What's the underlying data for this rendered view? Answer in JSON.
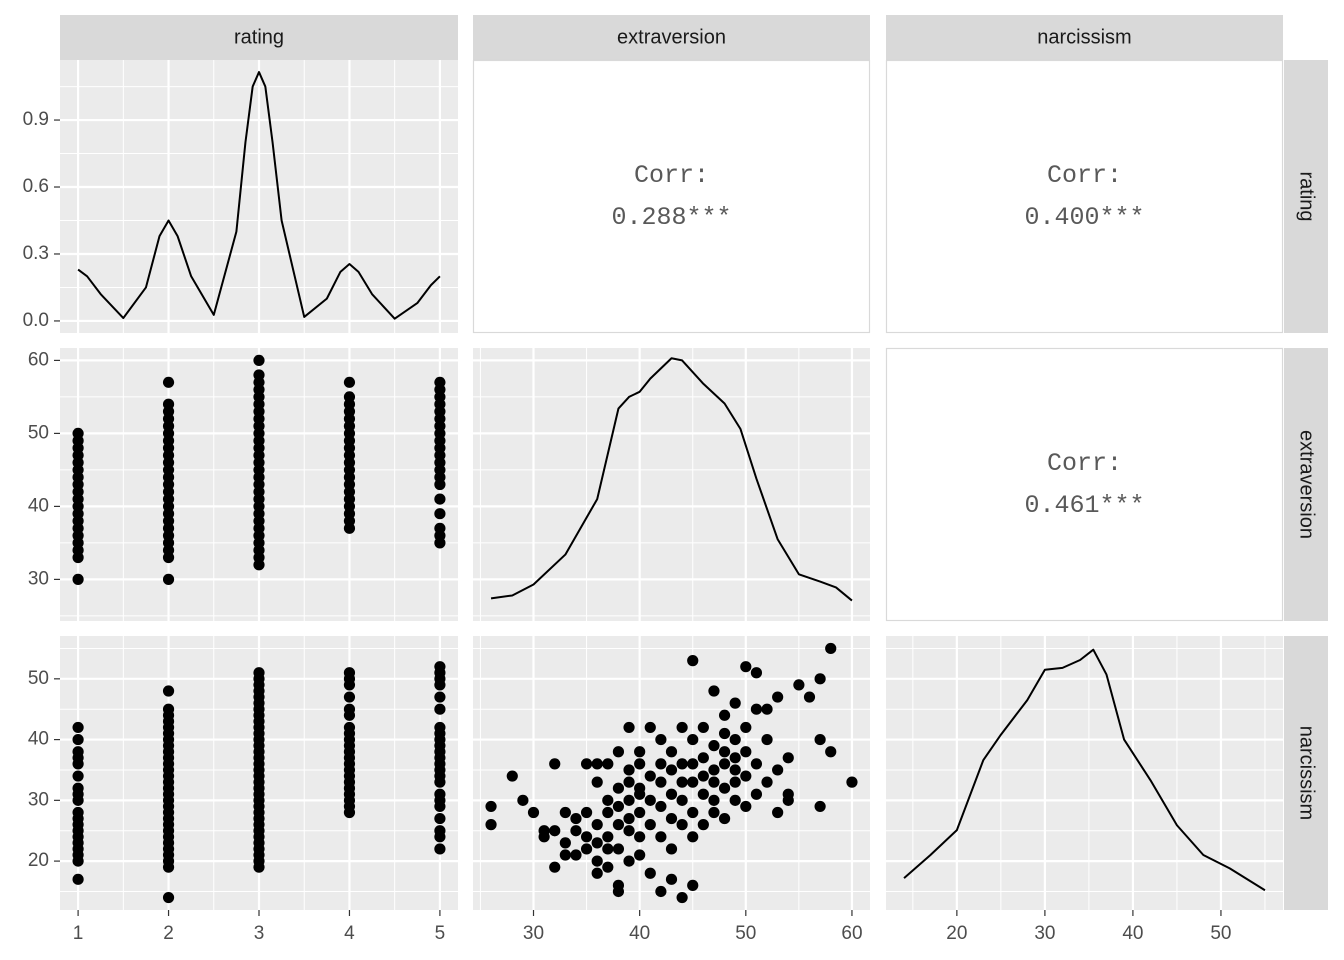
{
  "columns": [
    {
      "label": "rating",
      "xlim": [
        0.8,
        5.2
      ],
      "xticks": [
        1,
        2,
        3,
        4,
        5
      ]
    },
    {
      "label": "extraversion",
      "xlim": [
        24.3,
        61.7
      ],
      "xticks": [
        30,
        40,
        50,
        60
      ]
    },
    {
      "label": "narcissism",
      "xlim": [
        11.95,
        57.05
      ],
      "xticks": [
        20,
        30,
        40,
        50
      ]
    }
  ],
  "rows": [
    {
      "label": "rating",
      "ylim": [
        -0.054,
        1.169
      ],
      "yticks": [
        {
          "value": 0,
          "label": "0.0"
        },
        0.3,
        0.6,
        0.9
      ]
    },
    {
      "label": "extraversion",
      "ylim": [
        24.3,
        61.7
      ],
      "yticks": [
        30,
        40,
        50,
        60
      ]
    },
    {
      "label": "narcissism",
      "ylim": [
        11.95,
        57.05
      ],
      "yticks": [
        20,
        30,
        40,
        50
      ]
    }
  ],
  "chart_data": [
    {
      "type": "line",
      "color": "#000000",
      "x": [
        1,
        1.1,
        1.25,
        1.5,
        1.75,
        1.9,
        2,
        2.1,
        2.25,
        2.5,
        2.75,
        2.85,
        2.93,
        3,
        3.07,
        3.15,
        3.25,
        3.5,
        3.75,
        3.9,
        4,
        4.1,
        4.25,
        4.5,
        4.75,
        4.9,
        5
      ],
      "y": [
        0.23,
        0.2,
        0.12,
        0.013,
        0.15,
        0.38,
        0.45,
        0.38,
        0.2,
        0.027,
        0.4,
        0.8,
        1.05,
        1.115,
        1.05,
        0.8,
        0.45,
        0.018,
        0.1,
        0.22,
        0.255,
        0.22,
        0.12,
        0.01,
        0.08,
        0.16,
        0.2
      ]
    },
    {
      "type": "corr",
      "title": "Corr:",
      "values": [
        0.288
      ],
      "value_labels": [
        "0.288***"
      ]
    },
    {
      "type": "corr",
      "title": "Corr:",
      "values": [
        0.4
      ],
      "value_labels": [
        "0.400***"
      ]
    },
    {
      "type": "scatter",
      "color": "#000000",
      "x": [
        1,
        1,
        1,
        1,
        1,
        1,
        1,
        1,
        1,
        1,
        1,
        1,
        1,
        1,
        1,
        1,
        1,
        1,
        1,
        2,
        2,
        2,
        2,
        2,
        2,
        2,
        2,
        2,
        2,
        2,
        2,
        2,
        2,
        2,
        2,
        2,
        2,
        2,
        2,
        2,
        2,
        2,
        2,
        3,
        3,
        3,
        3,
        3,
        3,
        3,
        3,
        3,
        3,
        3,
        3,
        3,
        3,
        3,
        3,
        3,
        3,
        3,
        3,
        3,
        3,
        3,
        3,
        3,
        3,
        3,
        3,
        4,
        4,
        4,
        4,
        4,
        4,
        4,
        4,
        4,
        4,
        4,
        4,
        4,
        4,
        4,
        4,
        4,
        4,
        4,
        4,
        5,
        5,
        5,
        5,
        5,
        5,
        5,
        5,
        5,
        5,
        5,
        5,
        5,
        5,
        5,
        5,
        5,
        5,
        5,
        5
      ],
      "y": [
        30,
        33,
        34,
        35,
        36,
        37,
        38,
        39,
        40,
        41,
        42,
        43,
        44,
        45,
        46,
        47,
        48,
        49,
        50,
        30,
        33,
        34,
        35,
        36,
        37,
        38,
        39,
        40,
        41,
        42,
        43,
        44,
        45,
        46,
        47,
        48,
        49,
        50,
        51,
        52,
        53,
        54,
        57,
        32,
        33,
        34,
        35,
        36,
        37,
        38,
        39,
        40,
        41,
        42,
        43,
        44,
        45,
        46,
        47,
        48,
        49,
        50,
        51,
        52,
        53,
        54,
        55,
        56,
        57,
        58,
        60,
        37,
        38,
        39,
        40,
        41,
        42,
        43,
        44,
        45,
        46,
        47,
        48,
        49,
        50,
        51,
        52,
        53,
        54,
        55,
        57,
        35,
        36,
        37,
        39,
        41,
        43,
        44,
        45,
        46,
        47,
        48,
        49,
        50,
        51,
        52,
        53,
        54,
        55,
        56,
        57
      ]
    },
    {
      "type": "line",
      "color": "#000000",
      "x": [
        26,
        28,
        30,
        33,
        36,
        38,
        39,
        40,
        41,
        43,
        44,
        46,
        48,
        49.5,
        51,
        53,
        55,
        57,
        58.5,
        60
      ],
      "y": [
        27.4,
        27.8,
        29.3,
        33.4,
        41,
        53.4,
        55,
        55.7,
        57.5,
        60.3,
        60,
        56.8,
        54.1,
        50.6,
        43.8,
        35.5,
        30.7,
        29.7,
        28.9,
        27.1
      ]
    },
    {
      "type": "corr",
      "title": "Corr:",
      "values": [
        0.461
      ],
      "value_labels": [
        "0.461***"
      ]
    },
    {
      "type": "scatter",
      "color": "#000000",
      "x": [
        1,
        1,
        1,
        1,
        1,
        1,
        1,
        1,
        1,
        1,
        1,
        1,
        1,
        1,
        1,
        1,
        1,
        1,
        1,
        2,
        2,
        2,
        2,
        2,
        2,
        2,
        2,
        2,
        2,
        2,
        2,
        2,
        2,
        2,
        2,
        2,
        2,
        2,
        2,
        2,
        2,
        2,
        2,
        2,
        2,
        2,
        2,
        2,
        3,
        3,
        3,
        3,
        3,
        3,
        3,
        3,
        3,
        3,
        3,
        3,
        3,
        3,
        3,
        3,
        3,
        3,
        3,
        3,
        3,
        3,
        3,
        3,
        3,
        3,
        3,
        3,
        3,
        3,
        3,
        3,
        3,
        4,
        4,
        4,
        4,
        4,
        4,
        4,
        4,
        4,
        4,
        4,
        4,
        4,
        4,
        4,
        4,
        4,
        4,
        4,
        4,
        4,
        5,
        5,
        5,
        5,
        5,
        5,
        5,
        5,
        5,
        5,
        5,
        5,
        5,
        5,
        5,
        5,
        5,
        5,
        5,
        5,
        5,
        5,
        5
      ],
      "y": [
        17,
        20,
        21,
        22,
        23,
        24,
        25,
        26,
        27,
        28,
        30,
        31,
        32,
        34,
        36,
        37,
        38,
        40,
        42,
        14,
        19,
        20,
        21,
        22,
        23,
        24,
        25,
        26,
        27,
        28,
        29,
        30,
        31,
        32,
        33,
        34,
        35,
        36,
        37,
        38,
        39,
        40,
        41,
        42,
        43,
        44,
        45,
        48,
        19,
        20,
        21,
        22,
        23,
        24,
        25,
        26,
        27,
        28,
        29,
        30,
        31,
        32,
        33,
        34,
        35,
        36,
        37,
        38,
        39,
        40,
        41,
        42,
        43,
        44,
        45,
        46,
        47,
        48,
        49,
        50,
        51,
        28,
        29,
        30,
        31,
        32,
        33,
        34,
        35,
        36,
        37,
        38,
        39,
        40,
        41,
        42,
        44,
        45,
        47,
        49,
        50,
        51,
        22,
        24,
        25,
        27,
        29,
        30,
        31,
        33,
        34,
        35,
        36,
        37,
        38,
        39,
        40,
        41,
        42,
        45,
        47,
        49,
        50,
        51,
        52
      ]
    },
    {
      "type": "scatter",
      "color": "#000000",
      "x": [
        26,
        26,
        28,
        29,
        30,
        31,
        31,
        32,
        32,
        32,
        33,
        33,
        33,
        34,
        34,
        34,
        35,
        35,
        35,
        35,
        36,
        36,
        36,
        36,
        36,
        36,
        37,
        37,
        37,
        37,
        37,
        37,
        38,
        38,
        38,
        38,
        38,
        38,
        38,
        39,
        39,
        39,
        39,
        39,
        39,
        39,
        40,
        40,
        40,
        40,
        40,
        40,
        40,
        41,
        41,
        41,
        41,
        41,
        42,
        42,
        42,
        42,
        42,
        42,
        43,
        43,
        43,
        43,
        43,
        43,
        44,
        44,
        44,
        44,
        44,
        44,
        45,
        45,
        45,
        45,
        45,
        45,
        45,
        46,
        46,
        46,
        46,
        46,
        47,
        47,
        47,
        47,
        47,
        47,
        48,
        48,
        48,
        48,
        48,
        48,
        49,
        49,
        49,
        49,
        49,
        49,
        50,
        50,
        50,
        50,
        50,
        51,
        51,
        51,
        51,
        52,
        52,
        52,
        53,
        53,
        53,
        54,
        54,
        54,
        55,
        56,
        57,
        57,
        57,
        58,
        58,
        60
      ],
      "y": [
        29,
        26,
        34,
        30,
        28,
        25,
        24,
        19,
        36,
        25,
        28,
        21,
        23,
        27,
        21,
        25,
        28,
        22,
        24,
        36,
        20,
        18,
        26,
        23,
        36,
        33,
        22,
        28,
        30,
        36,
        19,
        24,
        32,
        16,
        15,
        26,
        38,
        22,
        29,
        33,
        35,
        20,
        27,
        30,
        25,
        42,
        32,
        36,
        21,
        24,
        28,
        31,
        38,
        34,
        30,
        26,
        42,
        18,
        33,
        29,
        36,
        40,
        24,
        15,
        31,
        35,
        27,
        38,
        17,
        22,
        42,
        36,
        30,
        26,
        14,
        33,
        53,
        40,
        33,
        28,
        36,
        24,
        16,
        37,
        31,
        42,
        26,
        34,
        39,
        35,
        30,
        48,
        28,
        33,
        41,
        36,
        32,
        44,
        27,
        38,
        46,
        35,
        30,
        40,
        33,
        37,
        52,
        38,
        34,
        29,
        42,
        36,
        45,
        31,
        51,
        40,
        45,
        33,
        28,
        35,
        47,
        37,
        31,
        30,
        49,
        47,
        50,
        40,
        29,
        55,
        38,
        33
      ]
    },
    {
      "type": "line",
      "color": "#000000",
      "x": [
        14,
        17,
        20,
        23,
        25,
        28,
        30,
        32,
        34,
        35.5,
        37,
        39,
        42,
        45,
        48,
        51,
        55
      ],
      "y": [
        17.2,
        21,
        25.1,
        36.6,
        40.8,
        46.5,
        51.5,
        51.8,
        53.1,
        54.8,
        50.7,
        40,
        33.3,
        25.9,
        21,
        18.8,
        15.2
      ]
    }
  ]
}
